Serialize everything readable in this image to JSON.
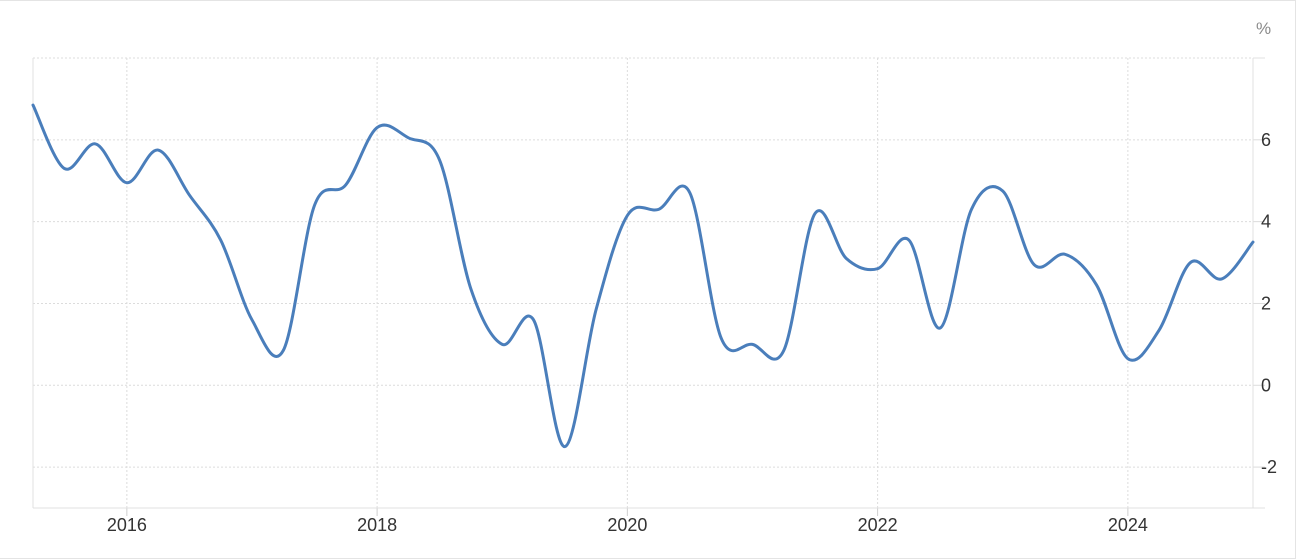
{
  "chart_data": {
    "type": "line",
    "title": "",
    "xlabel": "",
    "ylabel": "",
    "unit_label": "%",
    "xlim": [
      2015.25,
      2025.0
    ],
    "ylim": [
      -3,
      8
    ],
    "x_ticks": [
      2016,
      2018,
      2020,
      2022,
      2024
    ],
    "x_tick_labels": [
      "2016",
      "2018",
      "2020",
      "2022",
      "2024"
    ],
    "y_ticks": [
      -2,
      0,
      2,
      4,
      6
    ],
    "y_tick_labels": [
      "-2",
      "0",
      "2",
      "4",
      "6"
    ],
    "y_axis_side": "right",
    "grid": true,
    "line_color": "#4a7ebb",
    "series": [
      {
        "x": [
          2015.25,
          2015.5,
          2015.75,
          2016.0,
          2016.25,
          2016.5,
          2016.75,
          2017.0,
          2017.25,
          2017.5,
          2017.75,
          2018.0,
          2018.25,
          2018.5,
          2018.75,
          2019.0,
          2019.25,
          2019.5,
          2019.75,
          2020.0,
          2020.25,
          2020.5,
          2020.75,
          2021.0,
          2021.25,
          2021.5,
          2021.75,
          2022.0,
          2022.25,
          2022.5,
          2022.75,
          2023.0,
          2023.25,
          2023.5,
          2023.75,
          2024.0,
          2024.25,
          2024.5,
          2024.75,
          2025.0
        ],
        "y": [
          6.85,
          5.3,
          5.9,
          4.95,
          5.75,
          4.65,
          3.55,
          1.6,
          0.85,
          4.4,
          4.9,
          6.3,
          6.05,
          5.5,
          2.35,
          1.0,
          1.6,
          -1.5,
          1.85,
          4.15,
          4.3,
          4.7,
          1.15,
          1.0,
          0.85,
          4.2,
          3.1,
          2.85,
          3.55,
          1.4,
          4.3,
          4.75,
          2.95,
          3.2,
          2.45,
          0.65,
          1.35,
          3.0,
          2.6,
          3.5
        ]
      }
    ]
  }
}
